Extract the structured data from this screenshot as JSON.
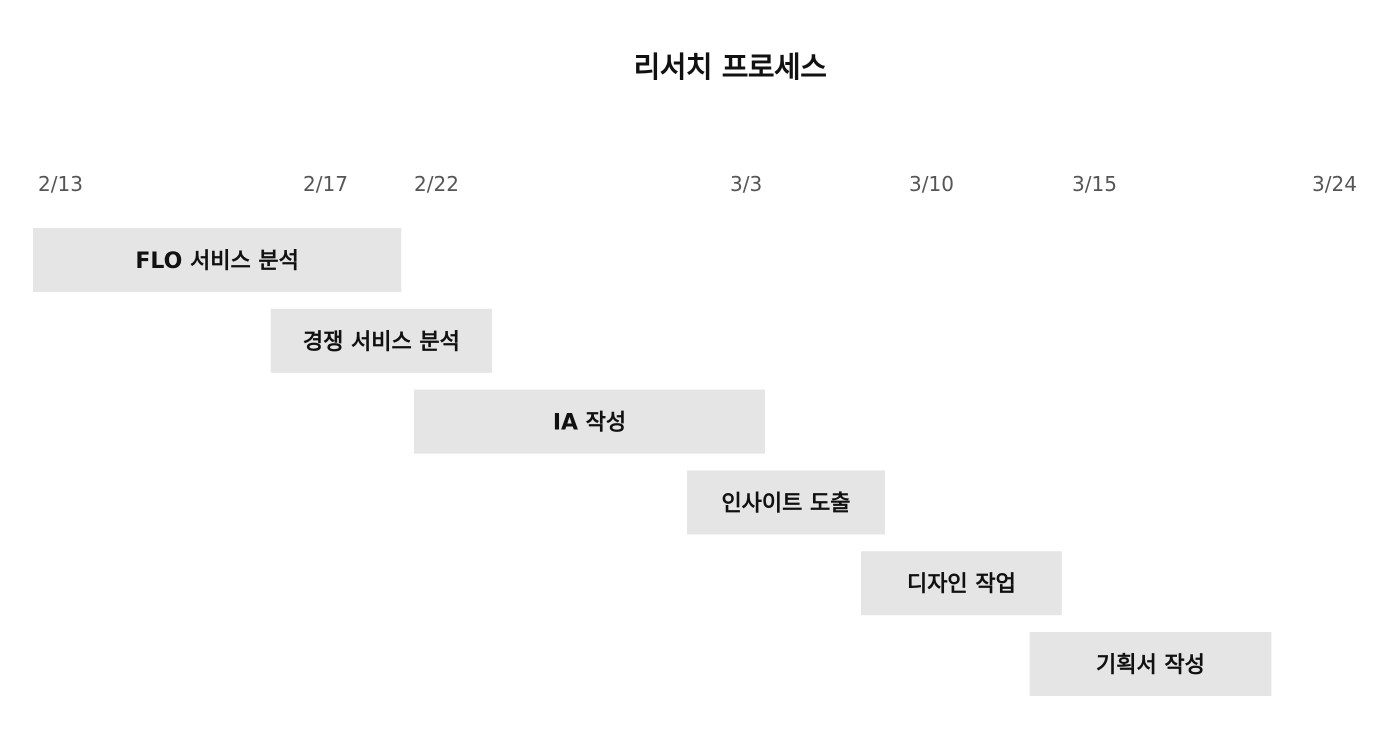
{
  "chart_data": {
    "type": "bar",
    "title": "리서치 프로세스",
    "date_labels": [
      "2/13",
      "2/17",
      "2/22",
      "3/3",
      "3/10",
      "3/15",
      "3/24"
    ],
    "tasks": [
      {
        "name": "FLO 서비스 분석",
        "start": "2/13",
        "end": "2/21"
      },
      {
        "name": "경쟁 서비스 분석",
        "start": "2/16",
        "end": "2/24"
      },
      {
        "name": "IA 작성",
        "start": "2/22",
        "end": "3/3"
      },
      {
        "name": "인사이트 도출",
        "start": "3/1",
        "end": "3/8"
      },
      {
        "name": "디자인 작업",
        "start": "3/7",
        "end": "3/14"
      },
      {
        "name": "기획서 작성",
        "start": "3/13",
        "end": "3/21"
      }
    ],
    "colors": {
      "bar": "#e5e5e5",
      "date_text": "#555555",
      "task_text": "#111111"
    }
  }
}
